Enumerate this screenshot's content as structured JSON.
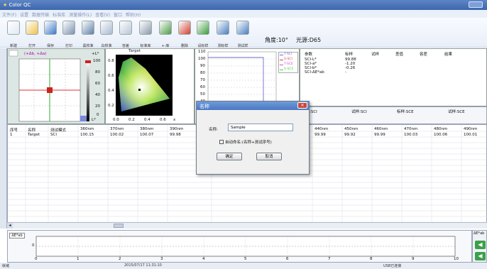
{
  "app": {
    "title": "Color QC"
  },
  "menu": [
    "文件(F)",
    "设置",
    "数据传输",
    "标准库",
    "测量操作(L)",
    "查看(V)",
    "窗口",
    "帮助(H)"
  ],
  "toolbar": [
    {
      "label": "新建",
      "icon": "new-document-icon",
      "color": "#dfe8f5"
    },
    {
      "label": "打开",
      "icon": "open-folder-icon",
      "color": "#f2c34a"
    },
    {
      "label": "保存",
      "icon": "save-disk-icon",
      "color": "#3c78c8"
    },
    {
      "label": "打印",
      "icon": "printer-icon",
      "color": "#7c90b0"
    },
    {
      "label": "黑校准",
      "icon": "black-calibrate-icon",
      "color": "#5e7fa8"
    },
    {
      "label": "白校准",
      "icon": "white-calibrate-icon",
      "color": "#a7b9d0"
    },
    {
      "label": "容差",
      "icon": "tolerance-icon",
      "color": "#b8c6d8"
    },
    {
      "label": "标准库",
      "icon": "standard-db-icon",
      "color": "#8b98aa"
    },
    {
      "label": "+-库",
      "icon": "database-edit-icon",
      "color": "#4e9a48"
    },
    {
      "label": "删除",
      "icon": "delete-icon",
      "color": "#d04030"
    },
    {
      "label": "设标样",
      "icon": "set-standard-icon",
      "color": "#3c9a3c"
    },
    {
      "label": "测标样",
      "icon": "measure-standard-icon",
      "color": "#4a7ec0"
    },
    {
      "label": "测试样",
      "icon": "measure-sample-icon",
      "color": "#4a7ec0"
    }
  ],
  "angle": "角度:10°",
  "illuminant": "光源:D65",
  "chart_a": {
    "legend": "(+Δb, +Δa)",
    "top_label": "+L*",
    "bottom_label": "L*",
    "l_ticks": [
      "100",
      "80",
      "60",
      "40",
      "20",
      "0"
    ]
  },
  "chart_b": {
    "title": "Target",
    "x_ticks": [
      "0.0",
      "0.2",
      "0.4",
      "0.6",
      "x"
    ],
    "y_ticks": [
      "0.8",
      "0.6",
      "0.4",
      "0.2"
    ]
  },
  "chart_c": {
    "y_ticks": [
      "110",
      "100",
      "90",
      "80",
      "70",
      "60",
      "50",
      "40",
      "30",
      "20"
    ],
    "legend": [
      {
        "label": "T-SCI",
        "color": "#6a6ad6"
      },
      {
        "label": "S-SCI",
        "color": "#d64a4a"
      },
      {
        "label": "T-SCE",
        "color": "#d64ad6"
      },
      {
        "label": "S-SCE",
        "color": "#4ad64a"
      }
    ]
  },
  "results": {
    "headers": [
      "参数",
      "标样",
      "试样",
      "差值",
      "容差",
      "结果"
    ],
    "rows": [
      [
        "SCI-L*",
        "99.88",
        "",
        "",
        "",
        ""
      ],
      [
        "SCI-a*",
        "-1.20",
        "",
        "",
        "",
        ""
      ],
      [
        "SCI-b*",
        "-0.26",
        "",
        "",
        "",
        ""
      ],
      [
        "SCI-ΔE*ab",
        "-",
        "",
        "",
        "",
        ""
      ]
    ]
  },
  "spectrum_tabs": [
    "标样:SCI",
    "试样:SCI",
    "标样:SCE",
    "试样:SCE"
  ],
  "table": {
    "headers": [
      "序号",
      "名称",
      "测试模式",
      "360nm",
      "370nm",
      "380nm",
      "390nm",
      "",
      "440nm",
      "450nm",
      "460nm",
      "470nm",
      "480nm",
      "490nm"
    ],
    "rows": [
      [
        "1",
        "Target",
        "SCI",
        "100.15",
        "100.02",
        "100.07",
        "99.98",
        "",
        "99.99",
        "99.92",
        "99.99",
        "100.03",
        "100.06",
        "100.01"
      ]
    ]
  },
  "dialog": {
    "title": "名称",
    "name_label": "名称:",
    "name_value": "Sample",
    "auto_name_label": "自动命名:(名称+测试序号)",
    "ok": "确定",
    "cancel": "取消"
  },
  "bottom_chart": {
    "x_ticks": [
      "0",
      "1",
      "2",
      "3",
      "4",
      "5",
      "6",
      "7",
      "8",
      "9",
      "10"
    ],
    "y_label": "0",
    "tab": "ΔE*ab"
  },
  "status": {
    "left": "就绪",
    "mid": "2015/07/17 11:31:10",
    "right": "USB已连接"
  }
}
